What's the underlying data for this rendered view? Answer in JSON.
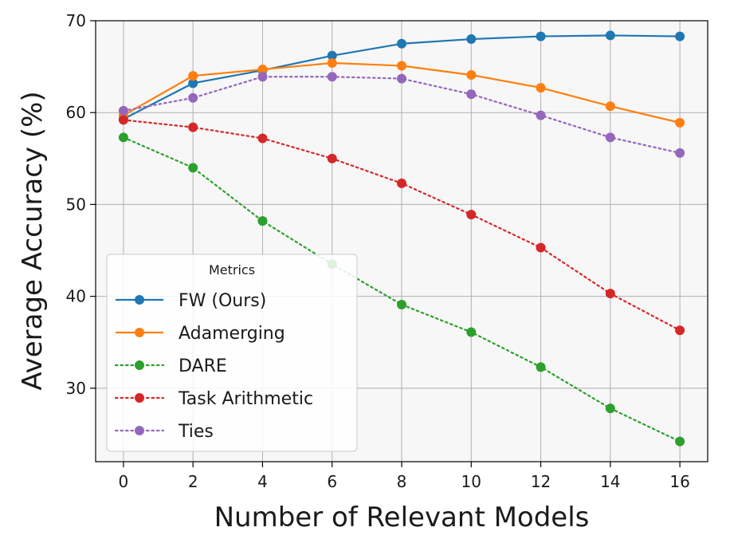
{
  "chart_data": {
    "type": "line",
    "title": "",
    "xlabel": "Number of Relevant Models",
    "ylabel": "Average Accuracy (%)",
    "x": [
      0,
      2,
      4,
      6,
      8,
      10,
      12,
      14,
      16
    ],
    "xlim": [
      -0.8,
      16.8
    ],
    "ylim": [
      22,
      70
    ],
    "xticks": [
      0,
      2,
      4,
      6,
      8,
      10,
      12,
      14,
      16
    ],
    "yticks": [
      30,
      40,
      50,
      60,
      70
    ],
    "grid": true,
    "legend": {
      "title": "Metrics",
      "position": "lower-left"
    },
    "series": [
      {
        "name": "FW (Ours)",
        "color": "#1f77b4",
        "style": "solid",
        "values": [
          59.3,
          63.2,
          64.6,
          66.2,
          67.5,
          68.0,
          68.3,
          68.4,
          68.3
        ]
      },
      {
        "name": "Adamerging",
        "color": "#ff7f0e",
        "style": "solid",
        "values": [
          59.7,
          64.0,
          64.7,
          65.4,
          65.1,
          64.1,
          62.7,
          60.7,
          58.9
        ]
      },
      {
        "name": "DARE",
        "color": "#2ca02c",
        "style": "dotted",
        "values": [
          57.3,
          54.0,
          48.2,
          43.5,
          39.1,
          36.1,
          32.3,
          27.8,
          24.2
        ]
      },
      {
        "name": "Task Arithmetic",
        "color": "#d62728",
        "style": "dotted",
        "values": [
          59.2,
          58.4,
          57.2,
          55.0,
          52.3,
          48.9,
          45.3,
          40.3,
          36.3
        ]
      },
      {
        "name": "Ties",
        "color": "#9467bd",
        "style": "dotted",
        "values": [
          60.2,
          61.6,
          63.9,
          63.9,
          63.7,
          62.0,
          59.7,
          57.3,
          55.6
        ]
      }
    ]
  }
}
